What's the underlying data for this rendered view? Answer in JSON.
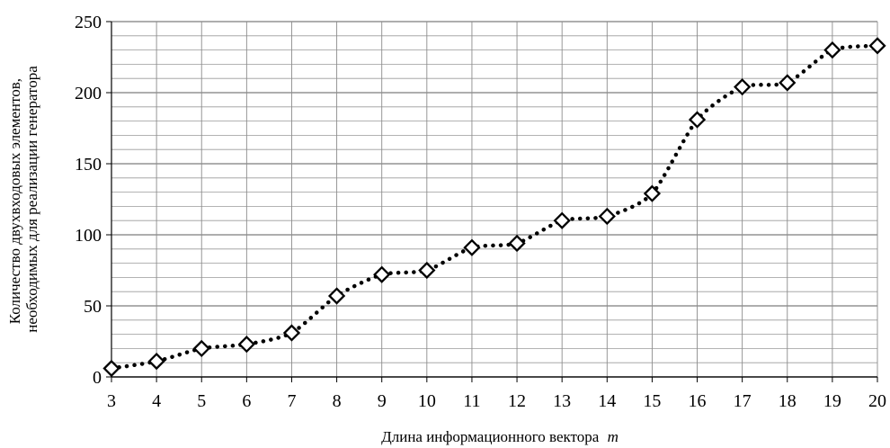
{
  "chart_data": {
    "type": "line",
    "title": "",
    "xlabel": "Длина информационного вектора",
    "xlabel_var": "m",
    "ylabel_lines": [
      "Количество двухвходовых элементов,",
      "необходимых для реализации генератора"
    ],
    "x": [
      3,
      4,
      5,
      6,
      7,
      8,
      9,
      10,
      11,
      12,
      13,
      14,
      15,
      16,
      17,
      18,
      19,
      20
    ],
    "series": [
      {
        "values": [
          6,
          11,
          20,
          23,
          31,
          57,
          72,
          75,
          91,
          94,
          110,
          113,
          129,
          181,
          204,
          207,
          230,
          233
        ],
        "line_style": "dotted",
        "marker": "diamond-open",
        "color": "#000000"
      }
    ],
    "xlim": [
      3,
      20
    ],
    "ylim": [
      0,
      250
    ],
    "yticks": [
      0,
      50,
      100,
      150,
      200,
      250
    ],
    "y_minor_step": 10,
    "grid": true,
    "legend": "none"
  }
}
